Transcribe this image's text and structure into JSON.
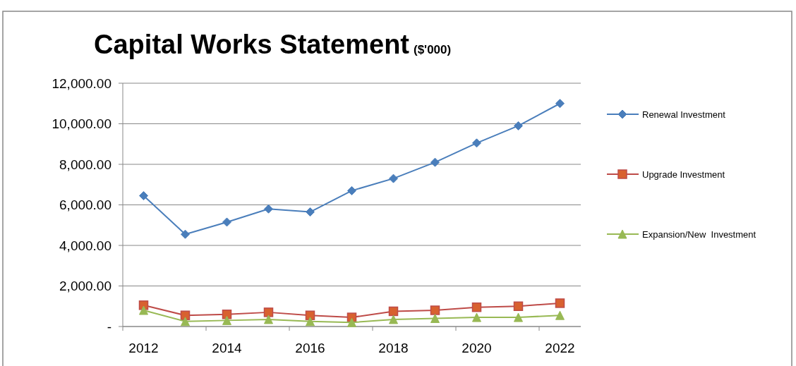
{
  "chart_data": {
    "type": "line",
    "title": "Capital Works Statement",
    "subtitle": "($'000)",
    "categories": [
      "2012",
      null,
      "2014",
      null,
      "2016",
      null,
      "2018",
      null,
      "2020",
      null,
      "2022"
    ],
    "series": [
      {
        "name": "Renewal Investment",
        "color": "#4a7ebb",
        "marker": "diamond",
        "values": [
          6450,
          4550,
          5150,
          5800,
          5650,
          6700,
          7300,
          8100,
          9050,
          9900,
          11000
        ]
      },
      {
        "name": "Upgrade Investment",
        "color": "#be4b48",
        "marker": "square",
        "values": [
          1050,
          550,
          600,
          700,
          550,
          450,
          750,
          800,
          950,
          1000,
          1150
        ]
      },
      {
        "name": "Expansion/New  Investment",
        "color": "#98b954",
        "marker": "triangle",
        "values": [
          800,
          250,
          300,
          350,
          250,
          200,
          350,
          400,
          450,
          450,
          550
        ]
      }
    ],
    "ylim": [
      0,
      12000
    ],
    "yticks": [
      {
        "value": 0,
        "label": "-"
      },
      {
        "value": 2000,
        "label": "2,000.00"
      },
      {
        "value": 4000,
        "label": "4,000.00"
      },
      {
        "value": 6000,
        "label": "6,000.00"
      },
      {
        "value": 8000,
        "label": "8,000.00"
      },
      {
        "value": 10000,
        "label": "10,000.00"
      },
      {
        "value": 12000,
        "label": "12,000.00"
      }
    ],
    "grid": "y",
    "legend": "right",
    "line_style": "solid"
  }
}
